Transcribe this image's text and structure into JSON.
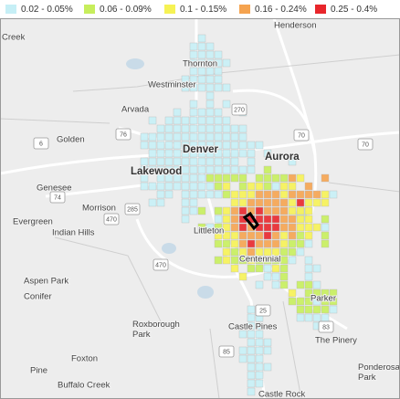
{
  "legend": [
    {
      "label": "0.02 - 0.05%",
      "color": "#c6eff6"
    },
    {
      "label": "0.06 - 0.09%",
      "color": "#c7ee5c"
    },
    {
      "label": "0.1 - 0.15%",
      "color": "#f6f254"
    },
    {
      "label": "0.16 - 0.24%",
      "color": "#f5a34f"
    },
    {
      "label": "0.25 - 0.4%",
      "color": "#e8262b"
    }
  ],
  "places": [
    {
      "label": "Creek"
    },
    {
      "label": "Henderson"
    },
    {
      "label": "Thornton"
    },
    {
      "label": "Westminster"
    },
    {
      "label": "Arvada"
    },
    {
      "label": "Golden"
    },
    {
      "label": "Denver"
    },
    {
      "label": "Aurora"
    },
    {
      "label": "Lakewood"
    },
    {
      "label": "Genesee"
    },
    {
      "label": "Morrison"
    },
    {
      "label": "Evergreen"
    },
    {
      "label": "Indian Hills"
    },
    {
      "label": "Littleton"
    },
    {
      "label": "Centennial"
    },
    {
      "label": "Aspen Park"
    },
    {
      "label": "Conifer"
    },
    {
      "label": "Roxborough Park"
    },
    {
      "label": "Parker"
    },
    {
      "label": "Castle Pines"
    },
    {
      "label": "The Pinery"
    },
    {
      "label": "Foxton"
    },
    {
      "label": "Pine"
    },
    {
      "label": "Buffalo Creek"
    },
    {
      "label": "Ponderosa Park"
    },
    {
      "label": "Castle Rock"
    }
  ],
  "shields": [
    "76",
    "6",
    "70",
    "470",
    "285",
    "25",
    "85",
    "270",
    "83",
    "74",
    "470",
    "70"
  ]
}
